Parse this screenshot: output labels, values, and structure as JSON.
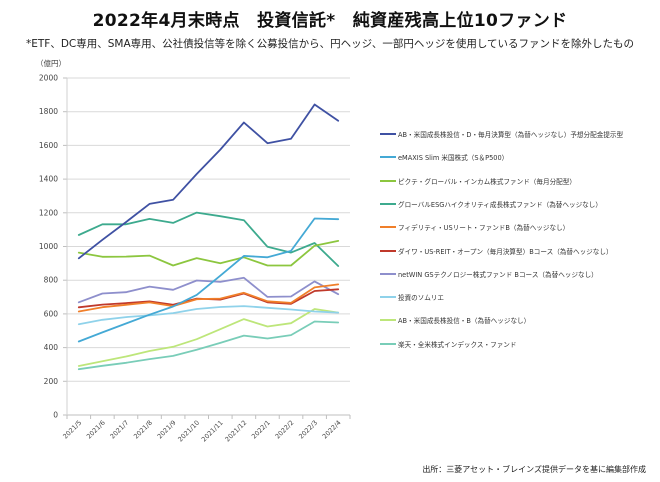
{
  "title": "2022年4月末時点　投資信託*　純資産残高上位10ファンド",
  "subtitle": "*ETF、DC専用、SMA専用、公社債投信等を除く公募投信から、円ヘッジ、一部円ヘッジを使用しているファンドを除外したもの",
  "source": "出所：三菱アセット・ブレインズ提供データを基に編集部作成",
  "chart_data": {
    "type": "line",
    "title": "2022年4月末時点　投資信託*　純資産残高上位10ファンド",
    "xlabel": "",
    "ylabel": "（億円）",
    "ylim": [
      0,
      2000
    ],
    "yticks": [
      "0",
      "200",
      "400",
      "600",
      "800",
      "1000",
      "1200",
      "1400",
      "1600",
      "1800",
      "2000"
    ],
    "grid": true,
    "legend_position": "right",
    "categories": [
      "2021/5",
      "2021/6",
      "2021/7",
      "2021/8",
      "2021/9",
      "2021/10",
      "2021/11",
      "2021/12",
      "2022/1",
      "2022/2",
      "2022/3",
      "2022/4"
    ],
    "series": [
      {
        "name": "AB・米国成長株投信・D・毎月決算型（為替ヘッジなし）予想分配金提示型",
        "color": "#3f51a3",
        "values": [
          930,
          1040,
          1145,
          1253,
          1277,
          1430,
          1575,
          1736,
          1613,
          1639,
          1843,
          1746
        ]
      },
      {
        "name": "eMAXIS Slim 米国株式（S＆P500）",
        "color": "#44a9d5",
        "values": [
          436,
          490,
          543,
          595,
          644,
          713,
          827,
          944,
          936,
          974,
          1166,
          1162
        ]
      },
      {
        "name": "ピクテ・グローバル・インカム株式ファンド（毎月分配型）",
        "color": "#8cc63f",
        "values": [
          964,
          939,
          940,
          946,
          887,
          931,
          901,
          936,
          887,
          887,
          1005,
          1033
        ]
      },
      {
        "name": "グローバルESGハイクオリティ成長株式ファンド（為替ヘッジなし）",
        "color": "#3daa8e",
        "values": [
          1068,
          1132,
          1132,
          1164,
          1140,
          1201,
          1180,
          1156,
          998,
          964,
          1021,
          884
        ]
      },
      {
        "name": "フィデリティ・USリート・ファンドB（為替ヘッジなし）",
        "color": "#f07f2a",
        "values": [
          614,
          640,
          654,
          668,
          646,
          687,
          691,
          725,
          675,
          665,
          757,
          775
        ]
      },
      {
        "name": "ダイワ・US-REIT・オープン（毎月決算型）Bコース（為替ヘッジなし）",
        "color": "#c0392b",
        "values": [
          639,
          655,
          664,
          674,
          654,
          691,
          685,
          721,
          669,
          660,
          736,
          746
        ]
      },
      {
        "name": "netWIN GSテクノロジー株式ファンド Bコース（為替ヘッジなし）",
        "color": "#8e8fcc",
        "values": [
          669,
          721,
          729,
          762,
          743,
          798,
          790,
          814,
          701,
          703,
          793,
          717
        ]
      },
      {
        "name": "投資のソムリエ",
        "color": "#8fd2ea",
        "values": [
          539,
          565,
          581,
          591,
          605,
          629,
          641,
          646,
          636,
          626,
          614,
          608
        ]
      },
      {
        "name": "AB・米国成長株投信・B（為替ヘッジなし）",
        "color": "#bde67a",
        "values": [
          291,
          319,
          347,
          380,
          405,
          450,
          509,
          569,
          525,
          545,
          629,
          608
        ]
      },
      {
        "name": "楽天・全米株式インデックス・ファンド",
        "color": "#79cdb8",
        "values": [
          272,
          292,
          310,
          332,
          351,
          387,
          428,
          471,
          454,
          474,
          555,
          549
        ]
      }
    ]
  }
}
